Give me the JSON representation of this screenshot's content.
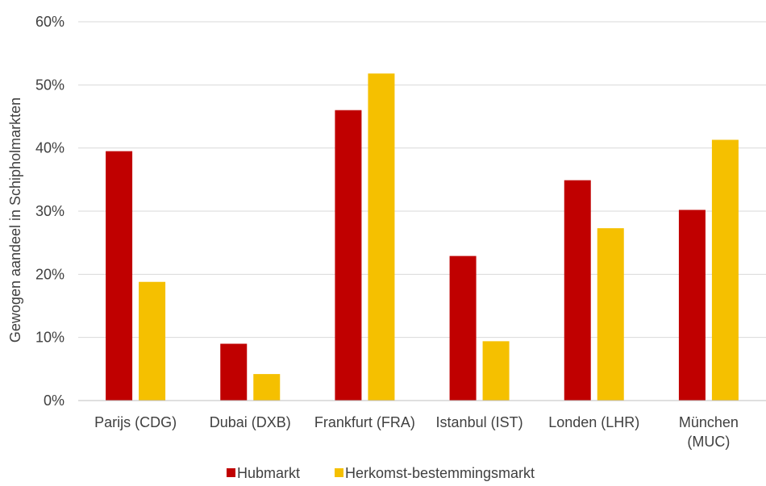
{
  "chart_data": {
    "type": "bar",
    "ylabel": "Gewogen aandeel in Schipholmarkten",
    "xlabel": "",
    "ylim": [
      0,
      60
    ],
    "y_ticks": [
      "0%",
      "10%",
      "20%",
      "30%",
      "40%",
      "50%",
      "60%"
    ],
    "y_tick_values": [
      0,
      10,
      20,
      30,
      40,
      50,
      60
    ],
    "grid": true,
    "legend_position": "bottom",
    "categories": [
      [
        "Parijs (CDG)"
      ],
      [
        "Dubai (DXB)"
      ],
      [
        "Frankfurt (FRA)"
      ],
      [
        "Istanbul (IST)"
      ],
      [
        "Londen (LHR)"
      ],
      [
        "München",
        "(MUC)"
      ]
    ],
    "series": [
      {
        "name": "Hubmarkt",
        "color": "#c00000",
        "values": [
          39.5,
          9.0,
          46.0,
          22.9,
          34.9,
          30.2
        ]
      },
      {
        "name": "Herkomst-bestemmingsmarkt",
        "color": "#f5c000",
        "values": [
          18.8,
          4.2,
          51.8,
          9.4,
          27.3,
          41.3
        ]
      }
    ]
  }
}
